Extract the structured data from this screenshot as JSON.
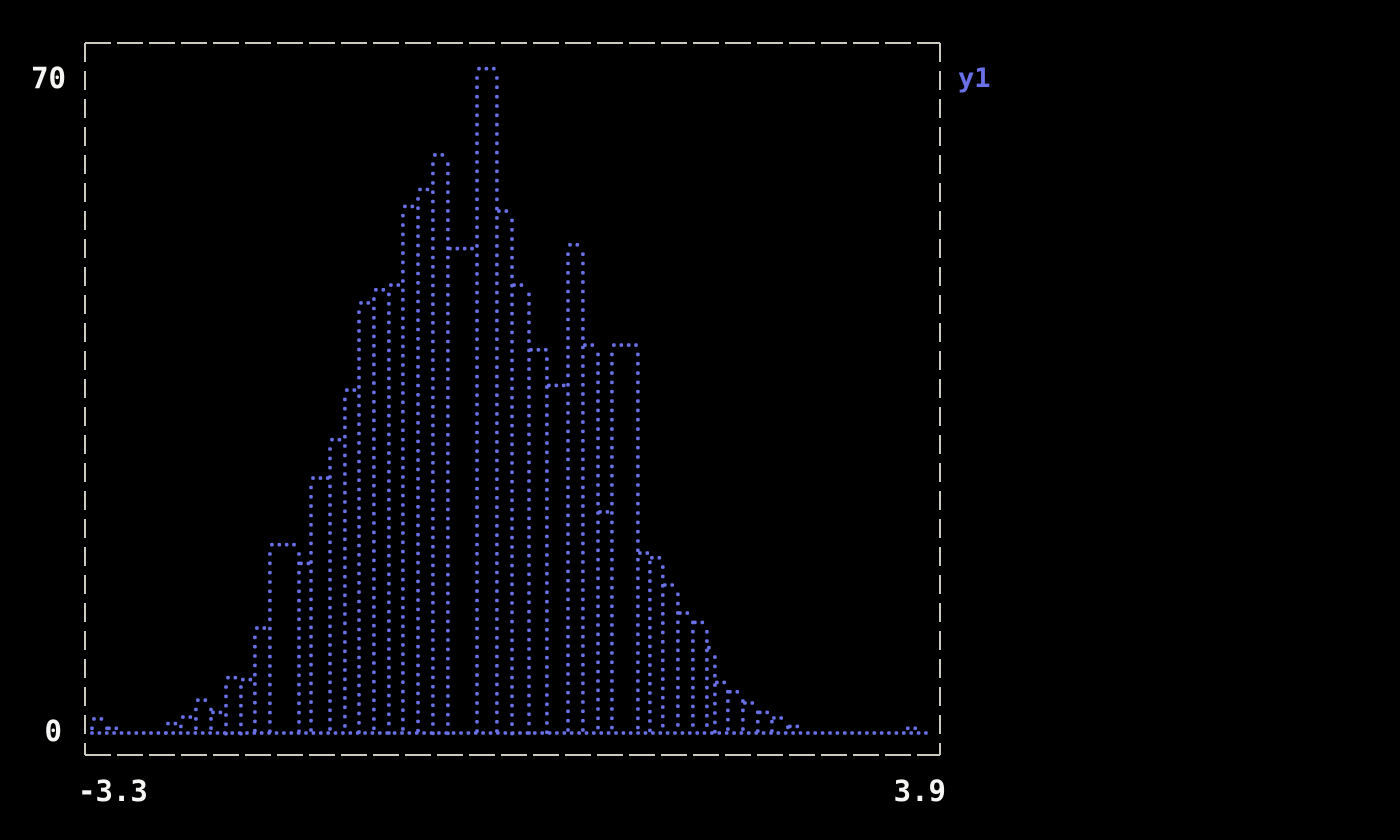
{
  "figure": {
    "background_color": "#000000",
    "border_color": "#ccc9c1",
    "label_color": "#f5f5f3",
    "series_color": "#6a70e6"
  },
  "axes": {
    "y_top_tick": "70",
    "y_bottom_tick": "0",
    "x_left_tick": "-3.3",
    "x_right_tick": "3.9"
  },
  "legend": {
    "label": "y1",
    "color": "#6a70e6",
    "position": "top-right-outside"
  },
  "chart_data": {
    "type": "bar",
    "subtype": "histogram-outline-braille-dots",
    "title": "",
    "xlabel": "",
    "ylabel": "",
    "xlim": [
      -3.3,
      3.9
    ],
    "ylim": [
      0,
      70
    ],
    "x_tick_labels": [
      "-3.3",
      "3.9"
    ],
    "y_tick_labels": [
      "0",
      "70"
    ],
    "legend_entries": [
      "y1"
    ],
    "grid": false,
    "series": [
      {
        "name": "y1",
        "bins": [
          [
            -3.241,
            -3.115,
            1.5
          ],
          [
            -3.115,
            -2.997,
            0.5
          ],
          [
            -2.997,
            -2.618,
            0.1
          ],
          [
            -2.618,
            -2.492,
            1.0
          ],
          [
            -2.492,
            -2.366,
            1.7
          ],
          [
            -2.366,
            -2.239,
            3.5
          ],
          [
            -2.239,
            -2.113,
            2.2
          ],
          [
            -2.113,
            -1.987,
            5.9
          ],
          [
            -1.987,
            -1.869,
            5.7
          ],
          [
            -1.869,
            -1.743,
            11.2
          ],
          [
            -1.743,
            -1.498,
            20.1
          ],
          [
            -1.498,
            -1.397,
            18.1
          ],
          [
            -1.397,
            -1.237,
            27.2
          ],
          [
            -1.237,
            -1.111,
            31.3
          ],
          [
            -1.111,
            -0.993,
            36.6
          ],
          [
            -0.993,
            -0.867,
            45.9
          ],
          [
            -0.867,
            -0.741,
            47.3
          ],
          [
            -0.741,
            -0.623,
            47.8
          ],
          [
            -0.623,
            -0.496,
            56.2
          ],
          [
            -0.496,
            -0.37,
            58.0
          ],
          [
            -0.37,
            -0.244,
            61.7
          ],
          [
            -0.244,
            0.001,
            51.7
          ],
          [
            0.001,
            0.169,
            70.9
          ],
          [
            0.169,
            0.296,
            55.7
          ],
          [
            0.296,
            0.439,
            47.8
          ],
          [
            0.439,
            0.59,
            40.9
          ],
          [
            0.59,
            0.767,
            37.1
          ],
          [
            0.767,
            0.893,
            52.1
          ],
          [
            0.893,
            1.02,
            41.4
          ],
          [
            1.02,
            1.137,
            23.6
          ],
          [
            1.137,
            1.356,
            41.4
          ],
          [
            1.356,
            1.457,
            19.2
          ],
          [
            1.457,
            1.566,
            18.7
          ],
          [
            1.566,
            1.693,
            15.8
          ],
          [
            1.693,
            1.819,
            12.8
          ],
          [
            1.819,
            1.937,
            11.8
          ],
          [
            1.937,
            2.004,
            9.1
          ],
          [
            2.004,
            2.114,
            5.4
          ],
          [
            2.114,
            2.24,
            4.4
          ],
          [
            2.24,
            2.366,
            3.2
          ],
          [
            2.366,
            2.484,
            2.2
          ],
          [
            2.484,
            2.619,
            1.6
          ],
          [
            2.619,
            2.737,
            0.7
          ],
          [
            2.737,
            3.612,
            0.0
          ],
          [
            3.612,
            3.739,
            0.5
          ],
          [
            3.739,
            3.831,
            0.2
          ]
        ]
      }
    ]
  }
}
